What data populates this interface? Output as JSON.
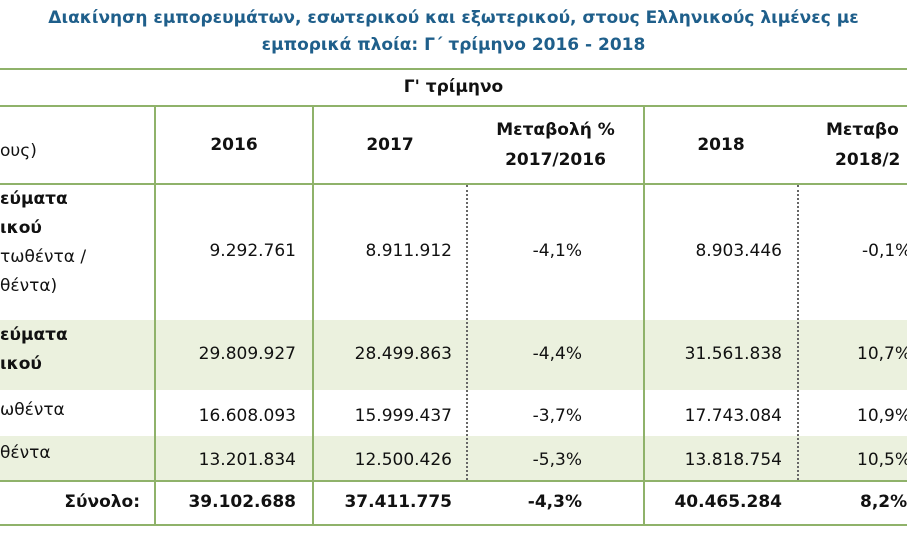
{
  "title": {
    "line1": "Διακίνηση εμπορευμάτων, εσωτερικού και εξωτερικού, στους Ελληνικούς λιμένες με",
    "line2": "εμπορικά πλοία: Γ΄ τρίμηνο 2016 - 2018"
  },
  "table": {
    "group_header": "Γ' τρίμηνο",
    "row_header_label": "ους)",
    "columns": {
      "y2016": "2016",
      "y2017": "2017",
      "chg1_line1": "Μεταβολή %",
      "chg1_line2": "2017/2016",
      "y2018": "2018",
      "chg2_line1": "Μεταβο",
      "chg2_line2": "2018/2"
    },
    "rows": [
      {
        "label_lines": [
          "εύματα",
          "ικού",
          "τωθέντα /",
          "θέντα)"
        ],
        "v2016": "9.292.761",
        "v2017": "8.911.912",
        "chg1": "-4,1%",
        "v2018": "8.903.446",
        "chg2": "-0,1%"
      },
      {
        "label_lines": [
          "εύματα",
          "ικού"
        ],
        "v2016": "29.809.927",
        "v2017": "28.499.863",
        "chg1": "-4,4%",
        "v2018": "31.561.838",
        "chg2": "10,7%"
      },
      {
        "label_lines": [
          "ωθέντα"
        ],
        "v2016": "16.608.093",
        "v2017": "15.999.437",
        "chg1": "-3,7%",
        "v2018": "17.743.084",
        "chg2": "10,9%"
      },
      {
        "label_lines": [
          "θέντα"
        ],
        "v2016": "13.201.834",
        "v2017": "12.500.426",
        "chg1": "-5,3%",
        "v2018": "13.818.754",
        "chg2": "10,5%"
      },
      {
        "label_lines": [
          "Σύνολο:"
        ],
        "v2016": "39.102.688",
        "v2017": "37.411.775",
        "chg1": "-4,3%",
        "v2018": "40.465.284",
        "chg2": "8,2%"
      }
    ]
  },
  "colors": {
    "title": "#1f5f8b",
    "grid": "#8fb26a",
    "band": "#ebf1de"
  }
}
